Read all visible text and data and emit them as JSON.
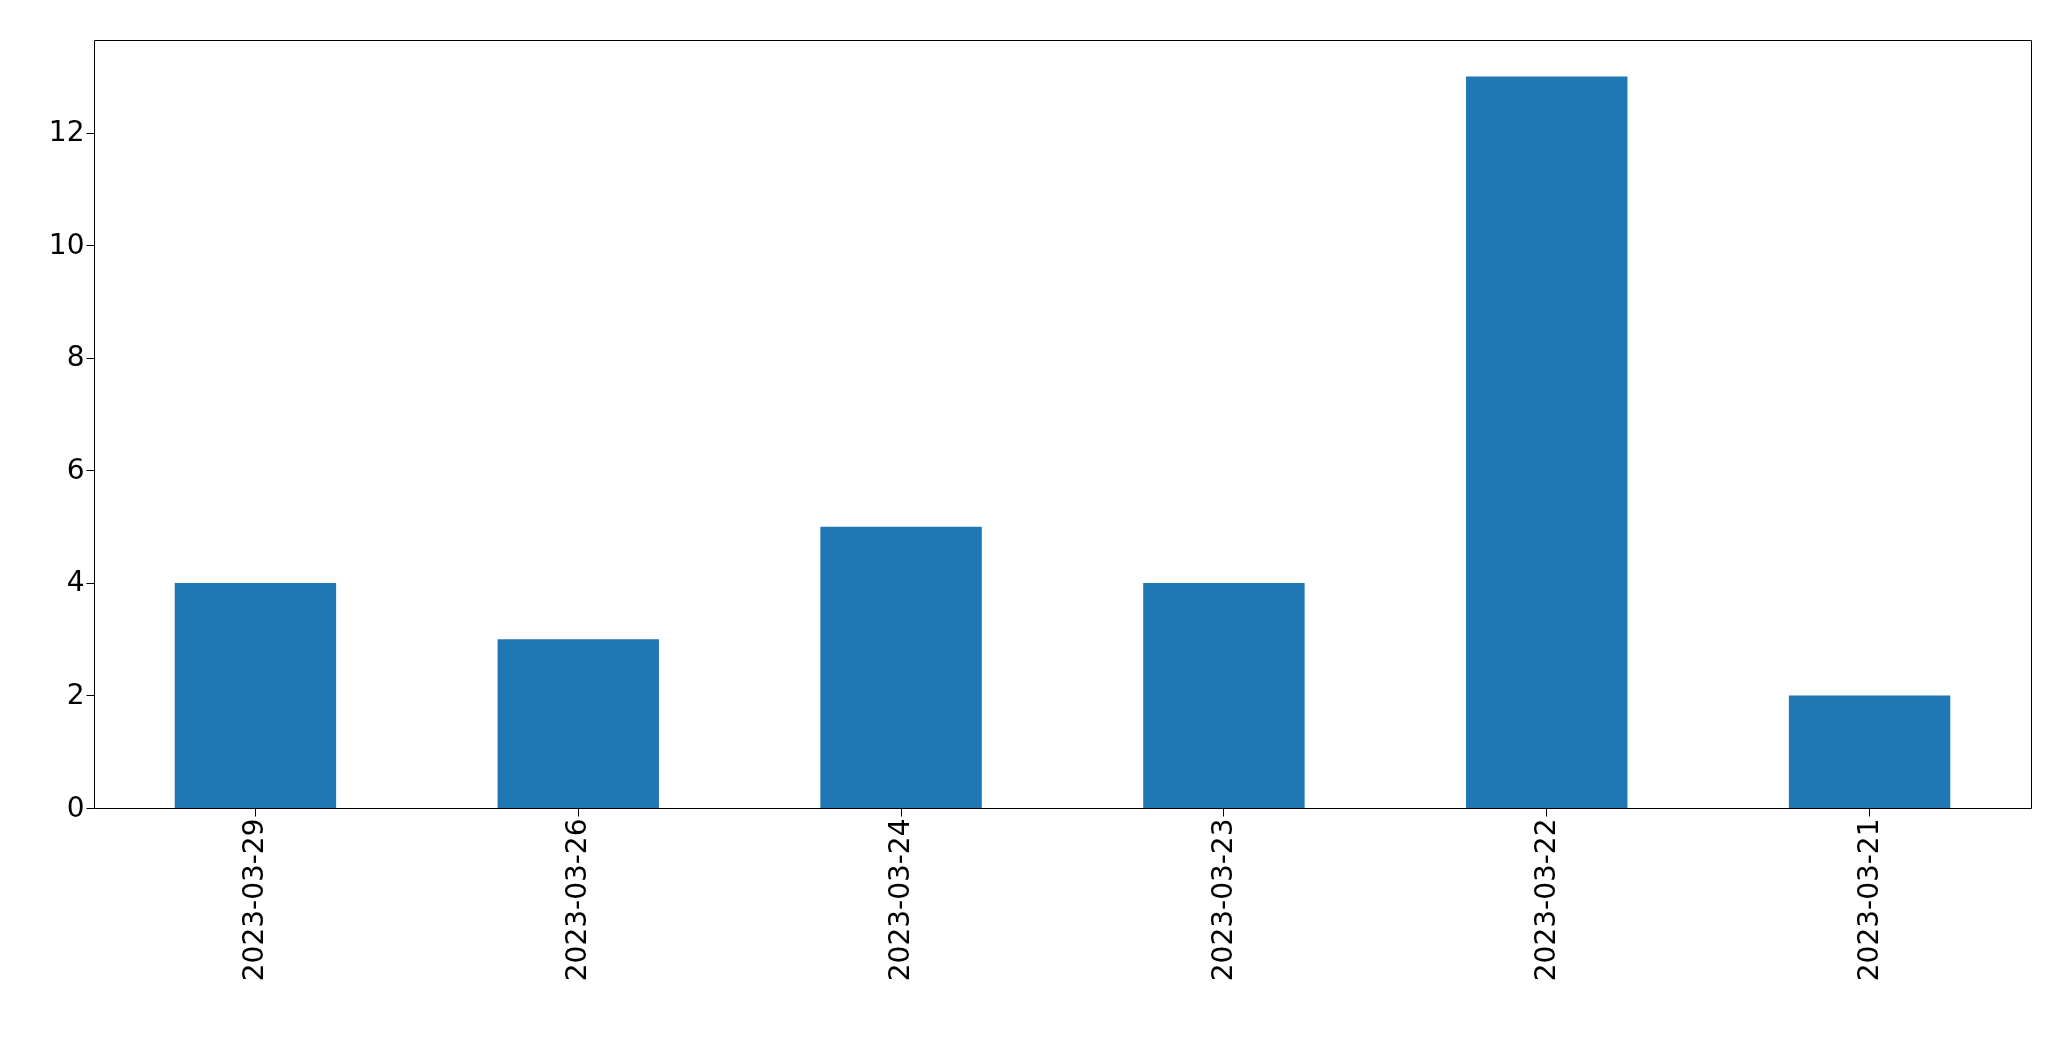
{
  "chart_data": {
    "type": "bar",
    "categories": [
      "2023-03-29",
      "2023-03-26",
      "2023-03-24",
      "2023-03-23",
      "2023-03-22",
      "2023-03-21"
    ],
    "values": [
      4,
      3,
      5,
      4,
      13,
      2
    ],
    "color": "#1f77b4",
    "ylim": [
      0,
      13.65
    ],
    "yticks": [
      0,
      2,
      4,
      6,
      8,
      10,
      12
    ],
    "grid": false
  }
}
